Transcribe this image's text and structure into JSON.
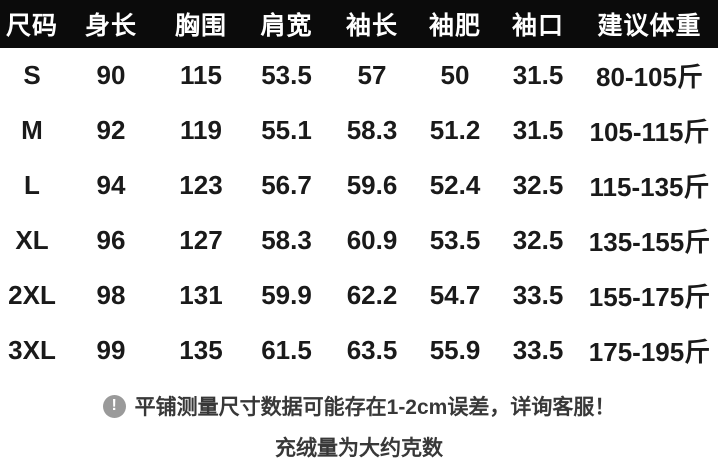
{
  "table": {
    "headers": [
      "尺码",
      "身长",
      "胸围",
      "肩宽",
      "袖长",
      "袖肥",
      "袖口",
      "建议体重"
    ],
    "rows": [
      [
        "S",
        "90",
        "115",
        "53.5",
        "57",
        "50",
        "31.5",
        "80-105斤"
      ],
      [
        "M",
        "92",
        "119",
        "55.1",
        "58.3",
        "51.2",
        "31.5",
        "105-115斤"
      ],
      [
        "L",
        "94",
        "123",
        "56.7",
        "59.6",
        "52.4",
        "32.5",
        "115-135斤"
      ],
      [
        "XL",
        "96",
        "127",
        "58.3",
        "60.9",
        "53.5",
        "32.5",
        "135-155斤"
      ],
      [
        "2XL",
        "98",
        "131",
        "59.9",
        "62.2",
        "54.7",
        "33.5",
        "155-175斤"
      ],
      [
        "3XL",
        "99",
        "135",
        "61.5",
        "63.5",
        "55.9",
        "33.5",
        "175-195斤"
      ]
    ]
  },
  "notes": {
    "icon_glyph": "!",
    "line1": "平铺测量尺寸数据可能存在1-2cm误差，详询客服！",
    "line2": "充绒量为大约克数"
  },
  "colors": {
    "header_bg": "#0b0b0b",
    "header_text": "#ffffff",
    "body_text": "#1a1a1a",
    "note_text": "#383838",
    "icon_gray": "#9a9a9a"
  }
}
